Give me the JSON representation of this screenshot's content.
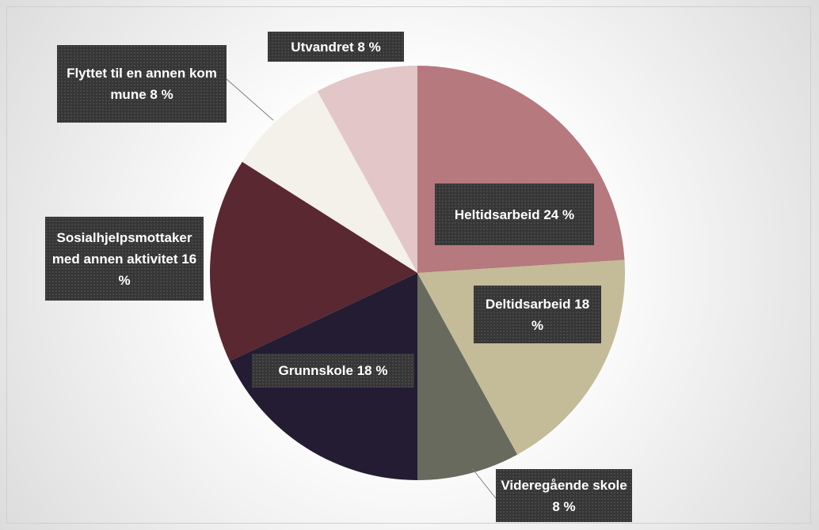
{
  "chart_data": {
    "type": "pie",
    "categories": [
      "Heltidsarbeid",
      "Deltidsarbeid",
      "Videregående skole",
      "Grunnskole",
      "Sosialhjelpsmottaker med annen aktivitet",
      "Flyttet til en annen kommune",
      "Utvandret"
    ],
    "values": [
      24,
      18,
      8,
      18,
      16,
      8,
      8
    ],
    "value_labels": [
      "24 %",
      "18 %",
      "8 %",
      "18 %",
      "16 %",
      "8 %",
      "8 %"
    ],
    "colors": [
      "#b5797e",
      "#c4bb98",
      "#686a5e",
      "#231c33",
      "#5a2830",
      "#f3f1e9",
      "#e2c6c8"
    ]
  }
}
